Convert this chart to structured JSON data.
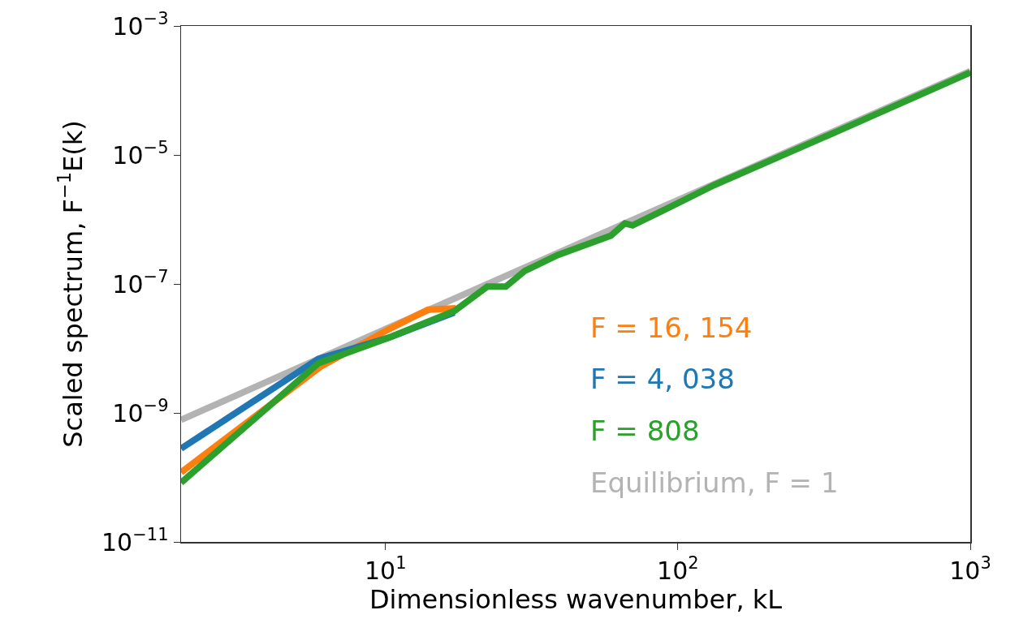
{
  "chart_data": {
    "type": "line",
    "xlabel": "Dimensionless wavenumber, kL",
    "ylabel": "Scaled spectrum, F$^{−1}$E(k)",
    "log": "xy",
    "xlim": [
      2,
      1000
    ],
    "xticks": [
      {
        "value": 10,
        "label": "10$^{1}$"
      },
      {
        "value": 100,
        "label": "10$^{2}$"
      },
      {
        "value": 1000,
        "label": "10$^{3}$"
      }
    ],
    "ylim": [
      1e-11,
      0.001
    ],
    "yticks": [
      {
        "value": 1e-11,
        "label": "10$^{−11}$"
      },
      {
        "value": 1e-09,
        "label": "10$^{−9}$"
      },
      {
        "value": 1e-07,
        "label": "10$^{−7}$"
      },
      {
        "value": 1e-05,
        "label": "10$^{−5}$"
      },
      {
        "value": 0.001,
        "label": "10$^{−3}$"
      }
    ],
    "grid": false,
    "legend": "bottom right",
    "marker": "none",
    "line_style": "solid",
    "series": [
      {
        "name": "F = 16, 154",
        "color": "#ff7f0e",
        "x": [
          2,
          6.0,
          10.3,
          14,
          17.4
        ],
        "values": [
          1.2e-10,
          5.2e-09,
          2e-08,
          4e-08,
          4.2e-08
        ]
      },
      {
        "name": "F = 4, 038",
        "color": "#1f77b4",
        "x": [
          2,
          5.9,
          10.4,
          17.2
        ],
        "values": [
          2.8e-10,
          6.9e-09,
          1.5e-08,
          3.6e-08
        ]
      },
      {
        "name": "F = 808",
        "color": "#2ca02c",
        "x": [
          2,
          5.9,
          10.4,
          17.2,
          22.3,
          25.8,
          30,
          38.8,
          59,
          65.9,
          70,
          86.8,
          133,
          300,
          1000
        ],
        "values": [
          8.3e-11,
          5.9e-09,
          1.5e-08,
          3.8e-08,
          9.1e-08,
          9.1e-08,
          1.6e-07,
          2.8e-07,
          5.6e-07,
          8.7e-07,
          8.1e-07,
          1.3e-06,
          3.4e-06,
          1.7e-05,
          0.00019
        ]
      },
      {
        "name": "Equilibrium, F = 1",
        "color": "#b3b3b3",
        "x": [
          2,
          10,
          100,
          1000
        ],
        "values": [
          7.8e-10,
          2e-08,
          2e-06,
          0.0002
        ]
      }
    ]
  }
}
